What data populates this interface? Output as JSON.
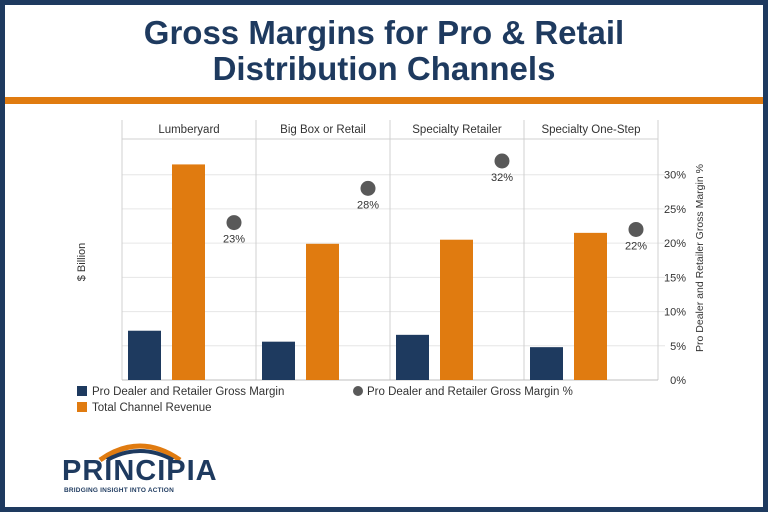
{
  "title_line1": "Gross Margins for Pro & Retail",
  "title_line2": "Distribution Channels",
  "colors": {
    "frame": "#1e3a5f",
    "accent": "#e07b10",
    "navy_bar": "#1e3a5f",
    "orange_bar": "#e07b10",
    "marker": "#595959"
  },
  "chart_data": {
    "type": "bar",
    "categories": [
      "Lumberyard",
      "Big Box or Retail",
      "Specialty Retailer",
      "Specialty One-Step"
    ],
    "series": [
      {
        "name": "Pro Dealer and Retailer Gross Margin",
        "axis": "left",
        "values": [
          7.2,
          5.6,
          6.6,
          4.8
        ]
      },
      {
        "name": "Total Channel Revenue",
        "axis": "left",
        "values": [
          31.5,
          19.9,
          20.5,
          21.5
        ]
      },
      {
        "name": "Pro Dealer and Retailer Gross Margin %",
        "axis": "right",
        "type": "scatter",
        "values": [
          23,
          28,
          32,
          22
        ]
      }
    ],
    "data_labels": [
      "23%",
      "28%",
      "32%",
      "22%"
    ],
    "ylabel": "$ Billion",
    "y2label": "Pro Dealer and Retailer Gross Margin %",
    "ylim": [
      0,
      34
    ],
    "y2lim": [
      0,
      34
    ],
    "y2_ticks": [
      "0%",
      "5%",
      "10%",
      "15%",
      "20%",
      "25%",
      "30%"
    ],
    "y2_tick_values": [
      0,
      5,
      10,
      15,
      20,
      25,
      30
    ],
    "legend_position": "bottom",
    "grid": true
  },
  "logo": {
    "name": "PRINCIPIA",
    "tagline": "BRIDGING INSIGHT INTO ACTION"
  }
}
